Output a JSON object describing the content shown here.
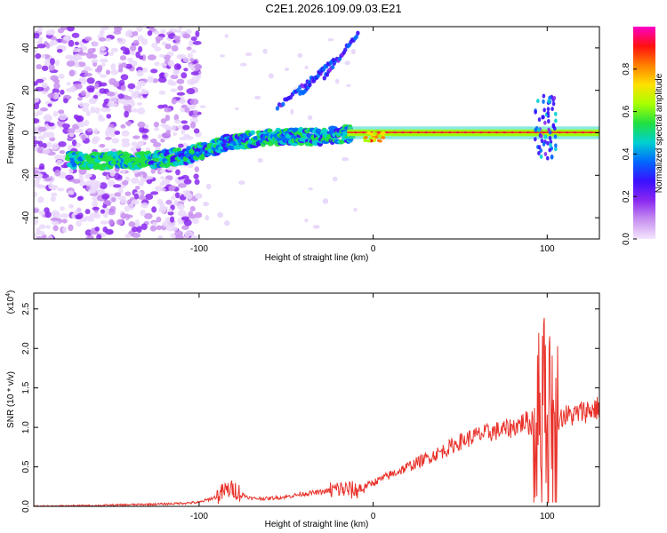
{
  "title": "C2E1.2026.109.09.03.E21",
  "chart_data": [
    {
      "type": "heatmap",
      "xlabel": "Height of straight line (km)",
      "ylabel": "Frequency (Hz)",
      "xlim": [
        -195,
        130
      ],
      "ylim": [
        -50,
        50
      ],
      "xticks": [
        -100,
        0,
        100
      ],
      "xtick_labels": [
        "-100",
        "0",
        "100"
      ],
      "yticks": [
        -40,
        -20,
        0,
        20,
        40
      ],
      "ytick_labels": [
        "-40",
        "-20",
        "0",
        "20",
        "40"
      ],
      "colorbar": {
        "label": "Normalized spectral amplitude",
        "range": [
          0,
          1
        ],
        "ticks": [
          0.0,
          0.2,
          0.4,
          0.6,
          0.8
        ],
        "tick_labels": [
          "0.0",
          "0.2",
          "0.4",
          "0.6",
          "0.8"
        ],
        "colors": [
          "#f4e6ff",
          "#c890f0",
          "#8a28f0",
          "#3a10ff",
          "#0068ff",
          "#00d0d0",
          "#20e040",
          "#a8ff00",
          "#ffe000",
          "#ff8000",
          "#ff1010",
          "#ff00c8"
        ]
      },
      "ridge": [
        [
          -160,
          -13
        ],
        [
          -130,
          -13
        ],
        [
          -110,
          -11
        ],
        [
          -100,
          -9
        ],
        [
          -90,
          -6
        ],
        [
          -80,
          -4
        ],
        [
          -70,
          -3
        ],
        [
          -60,
          -2
        ],
        [
          -50,
          -2
        ],
        [
          -40,
          -2
        ],
        [
          -30,
          -2
        ],
        [
          -20,
          -1
        ],
        [
          -10,
          0
        ],
        [
          0,
          0
        ],
        [
          20,
          0
        ],
        [
          60,
          0
        ],
        [
          100,
          0
        ],
        [
          130,
          0
        ]
      ]
    },
    {
      "type": "line",
      "xlabel": "Height of straight line (km)",
      "ylabel": "SNR (10 * v/v)",
      "scale_label": "(x10",
      "scale_exp": "4",
      "scale_close": ")",
      "xlim": [
        -195,
        130
      ],
      "ylim": [
        0,
        2.7
      ],
      "xticks": [
        -100,
        0,
        100
      ],
      "xtick_labels": [
        "-100",
        "0",
        "100"
      ],
      "yticks": [
        0.0,
        0.5,
        1.0,
        1.5,
        2.0,
        2.5
      ],
      "ytick_labels": [
        "0.0",
        "0.5",
        "1.0",
        "1.5",
        "2.0",
        "2.5"
      ],
      "color": "#e8322a",
      "series": [
        {
          "name": "SNR",
          "x": [
            -195,
            -160,
            -120,
            -100,
            -90,
            -85,
            -80,
            -75,
            -70,
            -60,
            -50,
            -40,
            -30,
            -20,
            -10,
            0,
            10,
            20,
            30,
            40,
            50,
            60,
            70,
            75,
            80,
            85,
            88,
            90,
            93,
            95,
            97,
            98,
            100,
            102,
            104,
            106,
            110,
            115,
            120,
            125,
            130
          ],
          "y": [
            0.0,
            0.01,
            0.03,
            0.05,
            0.12,
            0.2,
            0.22,
            0.15,
            0.1,
            0.1,
            0.12,
            0.16,
            0.18,
            0.22,
            0.2,
            0.3,
            0.4,
            0.5,
            0.6,
            0.7,
            0.82,
            0.9,
            0.95,
            0.97,
            1.0,
            1.05,
            1.08,
            1.02,
            0.95,
            1.2,
            1.0,
            2.5,
            0.5,
            1.6,
            0.6,
            1.1,
            1.15,
            1.15,
            1.2,
            1.22,
            1.25
          ]
        }
      ]
    }
  ]
}
